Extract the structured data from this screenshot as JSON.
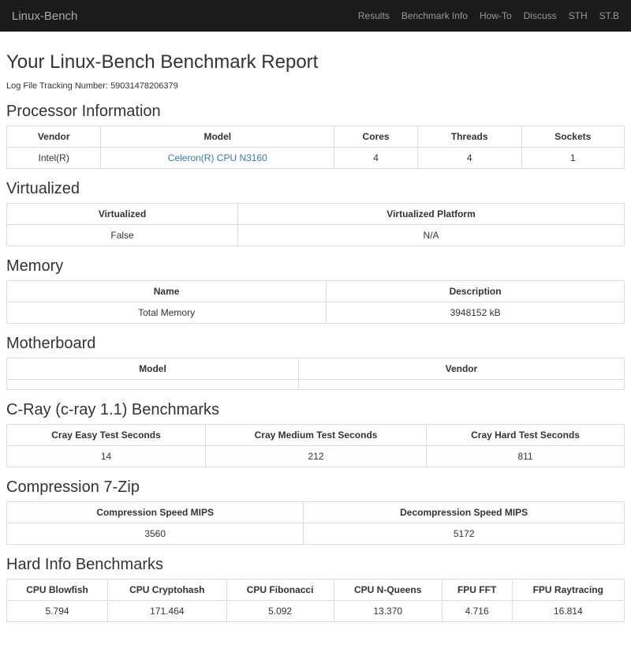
{
  "navbar": {
    "brand": "Linux-Bench",
    "links": [
      "Results",
      "Benchmark Info",
      "How-To",
      "Discuss",
      "STH",
      "ST.B"
    ]
  },
  "header": {
    "title": "Your Linux-Bench Benchmark Report",
    "tracking_label": "Log File Tracking Number:",
    "tracking_number": "59031478206379"
  },
  "processor": {
    "heading": "Processor Information",
    "columns": [
      "Vendor",
      "Model",
      "Cores",
      "Threads",
      "Sockets"
    ],
    "row": {
      "vendor": "Intel(R)",
      "model": "Celeron(R) CPU N3160",
      "cores": "4",
      "threads": "4",
      "sockets": "1"
    }
  },
  "virtualized": {
    "heading": "Virtualized",
    "columns": [
      "Virtualized",
      "Virtualized Platform"
    ],
    "row": {
      "virtualized": "False",
      "platform": "N/A"
    }
  },
  "memory": {
    "heading": "Memory",
    "columns": [
      "Name",
      "Description"
    ],
    "row": {
      "name": "Total Memory",
      "description": "3948152 kB"
    }
  },
  "motherboard": {
    "heading": "Motherboard",
    "columns": [
      "Model",
      "Vendor"
    ],
    "row": {
      "model": "",
      "vendor": ""
    }
  },
  "cray": {
    "heading": "C-Ray (c-ray 1.1) Benchmarks",
    "columns": [
      "Cray Easy Test Seconds",
      "Cray Medium Test Seconds",
      "Cray Hard Test Seconds"
    ],
    "row": {
      "easy": "14",
      "medium": "212",
      "hard": "811"
    }
  },
  "p7zip": {
    "heading": "Compression 7-Zip",
    "columns": [
      "Compression Speed MIPS",
      "Decompression Speed MIPS"
    ],
    "row": {
      "compression": "3560",
      "decompression": "5172"
    }
  },
  "hardinfo": {
    "heading": "Hard Info Benchmarks",
    "columns": [
      "CPU Blowfish",
      "CPU Cryptohash",
      "CPU Fibonacci",
      "CPU N-Queens",
      "FPU FFT",
      "FPU Raytracing"
    ],
    "row": {
      "blowfish": "5.794",
      "cryptohash": "171.464",
      "fibonacci": "5.092",
      "nqueens": "13.370",
      "fft": "4.716",
      "raytracing": "16.814"
    }
  }
}
